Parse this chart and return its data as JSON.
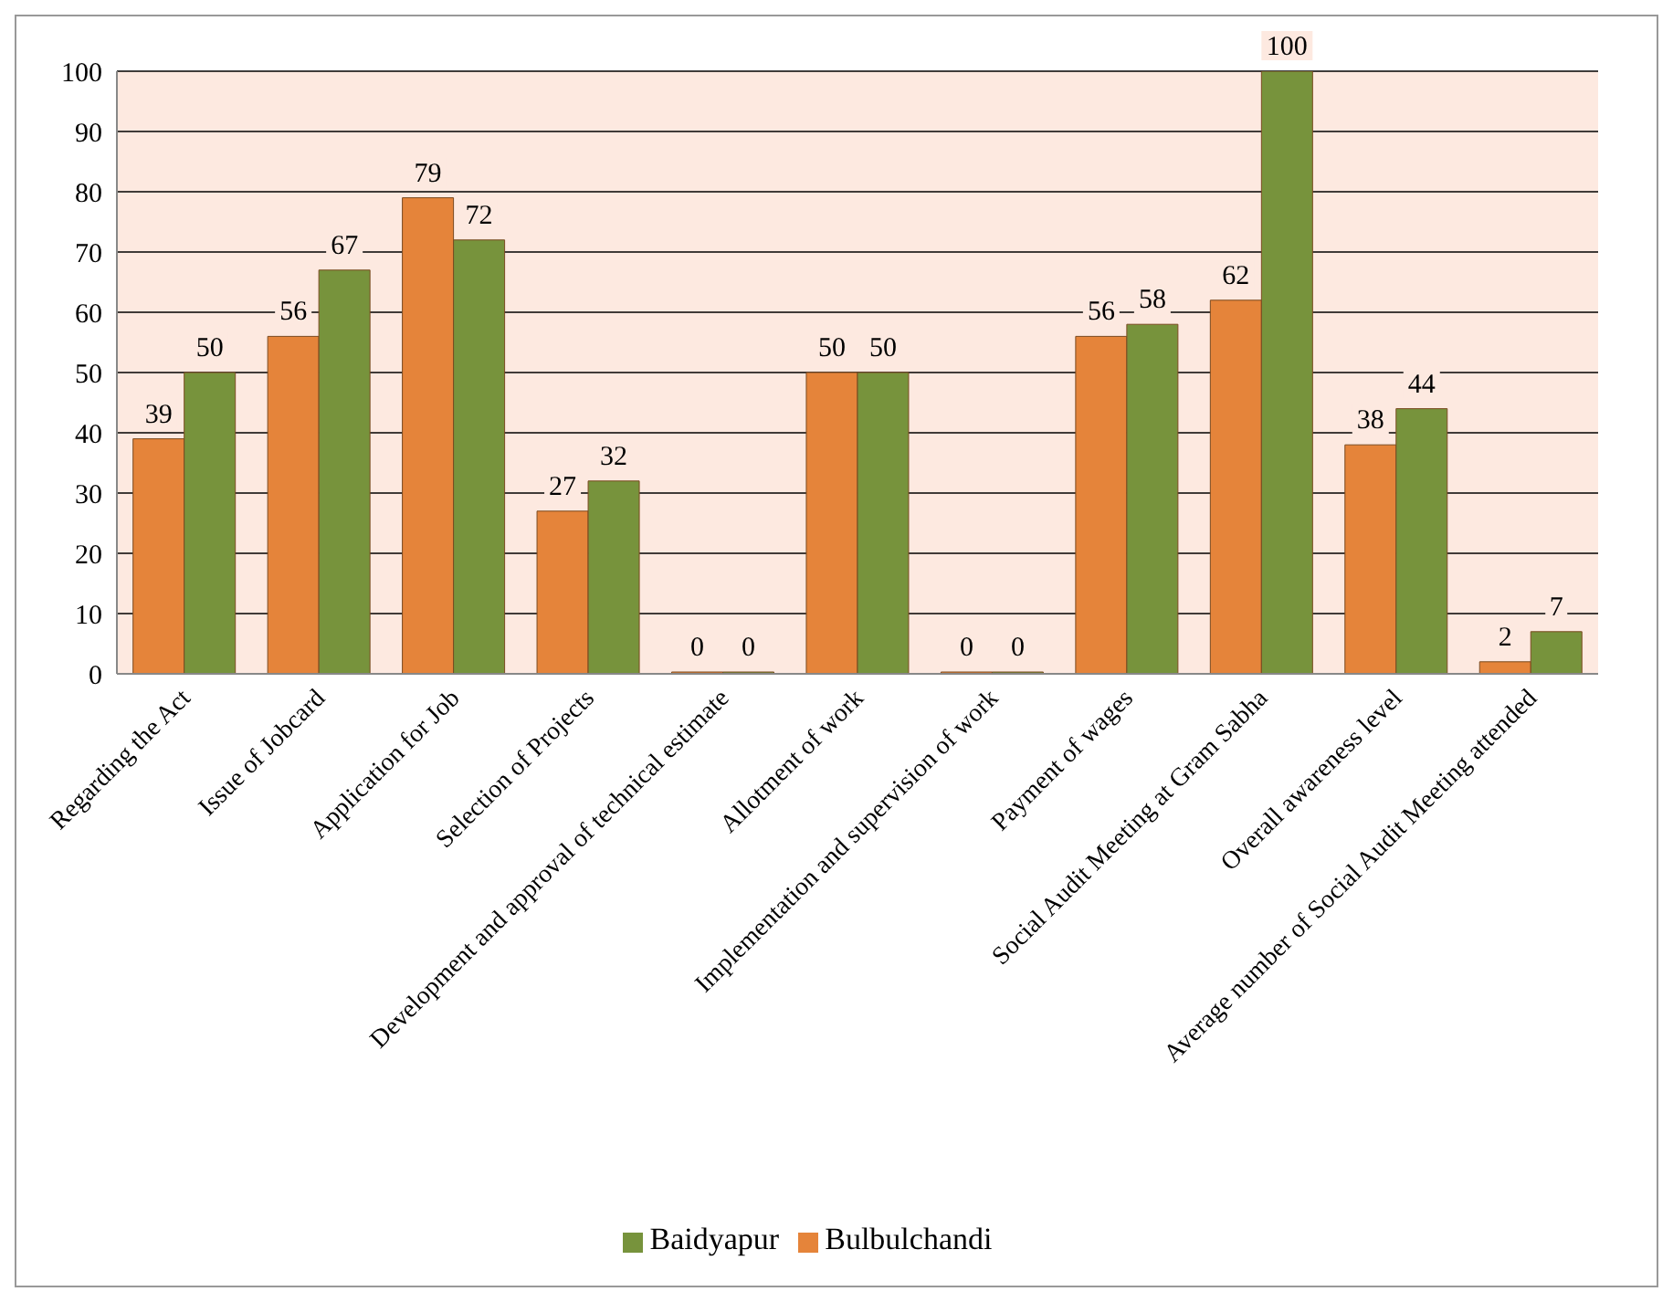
{
  "chart_data": {
    "type": "bar",
    "categories": [
      "Regarding the Act",
      "Issue of Jobcard",
      "Application for Job",
      "Selection of Projects",
      "Development and approval of technical estimate",
      "Allotment of work",
      "Implementation and supervision of work",
      "Payment of wages",
      "Social Audit Meeting at Gram Sabha",
      "Overall awareness level",
      "Average number of Social Audit Meeting attended"
    ],
    "series": [
      {
        "name": "Bulbulchandi",
        "color": "#e5843a",
        "values": [
          39,
          56,
          79,
          27,
          0,
          50,
          0,
          56,
          62,
          38,
          2
        ]
      },
      {
        "name": "Baidyapur",
        "color": "#77933c",
        "values": [
          50,
          67,
          72,
          32,
          0,
          50,
          0,
          58,
          100,
          44,
          7
        ]
      }
    ],
    "ylim": [
      0,
      100
    ],
    "yticks": [
      0,
      10,
      20,
      30,
      40,
      50,
      60,
      70,
      80,
      90,
      100
    ],
    "grid": "y",
    "legend": "bottom",
    "data_labels": true
  }
}
